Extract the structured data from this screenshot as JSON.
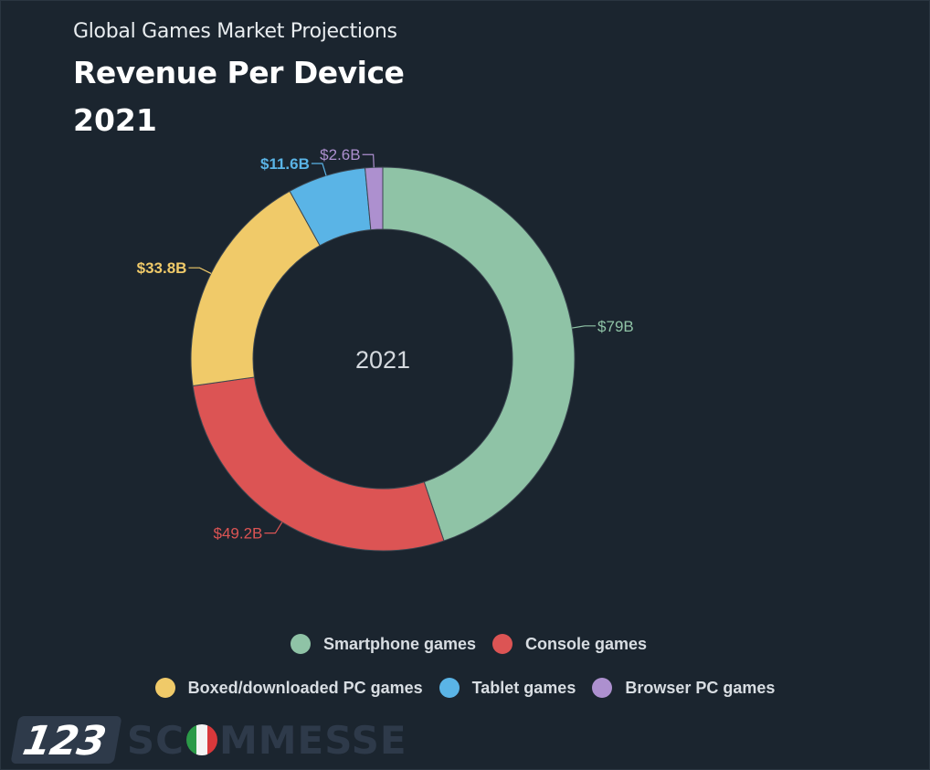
{
  "header": {
    "subtitle": "Global Games Market Projections",
    "title": "Revenue Per Device",
    "year": "2021"
  },
  "chart_data": {
    "type": "pie",
    "variant": "donut",
    "center_label": "2021",
    "categories": [
      "Smartphone games",
      "Console games",
      "Boxed/downloaded PC games",
      "Tablet games",
      "Browser PC games"
    ],
    "values": [
      79,
      49.2,
      33.8,
      11.6,
      2.6
    ],
    "data_labels": [
      "$79B",
      "$49.2B",
      "$33.8B",
      "$11.6B",
      "$2.6B"
    ],
    "colors": [
      "#8fc3a6",
      "#dc5454",
      "#f0ca69",
      "#5ab4e6",
      "#ad90cf"
    ],
    "unit": "$B",
    "legend_placement": "bottom"
  },
  "legend": {
    "row1": [
      {
        "label": "Smartphone games",
        "color": "#8fc3a6"
      },
      {
        "label": "Console games",
        "color": "#dc5454"
      }
    ],
    "row2": [
      {
        "label": "Boxed/downloaded PC games",
        "color": "#f0ca69"
      },
      {
        "label": "Tablet games",
        "color": "#5ab4e6"
      },
      {
        "label": "Browser PC games",
        "color": "#ad90cf"
      }
    ]
  },
  "logo": {
    "number": "123",
    "text_before": "SC",
    "text_after": "MMESSE"
  }
}
